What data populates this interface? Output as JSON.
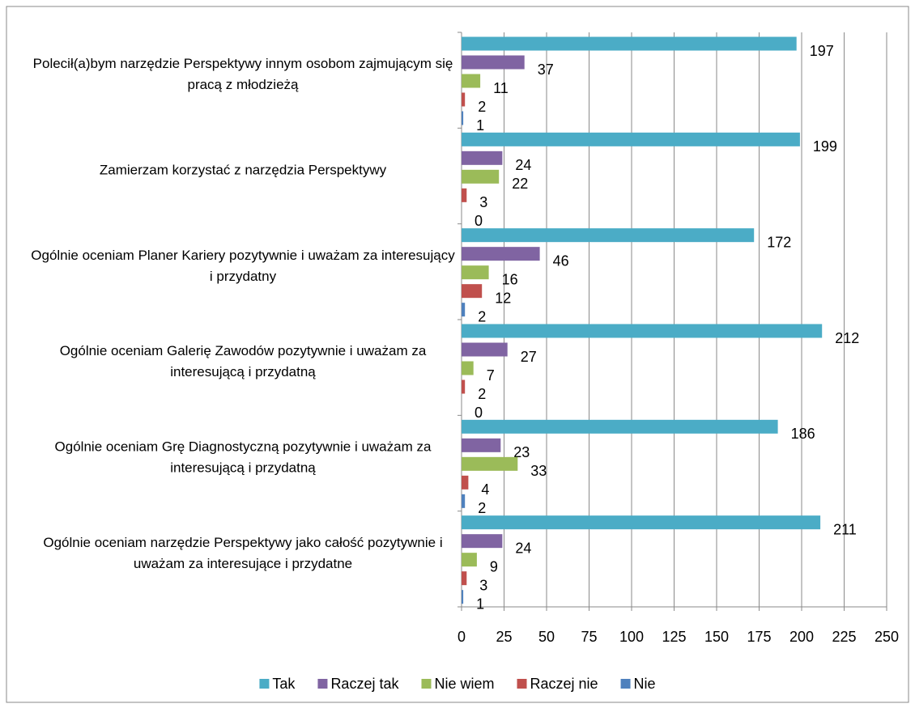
{
  "chart_data": {
    "type": "bar",
    "orientation": "horizontal",
    "categories": [
      "Polecił(a)bym narzędzie Perspektywy innym osobom zajmującym się pracą z młodzieżą",
      "Zamierzam korzystać z narzędzia Perspektywy",
      "Ogólnie oceniam Planer Kariery pozytywnie i uważam za interesujący i przydatny",
      "Ogólnie oceniam Galerię Zawodów pozytywnie i uważam za interesującą i przydatną",
      "Ogólnie oceniam Grę Diagnostyczną pozytywnie i uważam za interesującą i przydatną",
      "Ogólnie oceniam narzędzie Perspektywy jako całość pozytywnie i uważam za interesujące i przydatne"
    ],
    "series": [
      {
        "name": "Tak",
        "color": "#4bacc6",
        "values": [
          197,
          199,
          172,
          212,
          186,
          211
        ]
      },
      {
        "name": "Raczej tak",
        "color": "#8064a2",
        "values": [
          37,
          24,
          46,
          27,
          23,
          24
        ]
      },
      {
        "name": "Nie wiem",
        "color": "#9bbb59",
        "values": [
          11,
          22,
          16,
          7,
          33,
          9
        ]
      },
      {
        "name": "Raczej nie",
        "color": "#c0504d",
        "values": [
          2,
          3,
          12,
          2,
          4,
          3
        ]
      },
      {
        "name": "Nie",
        "color": "#4f81bd",
        "values": [
          1,
          0,
          2,
          0,
          2,
          1
        ]
      }
    ],
    "xlim": [
      0,
      250
    ],
    "xticks": [
      0,
      25,
      50,
      75,
      100,
      125,
      150,
      175,
      200,
      225,
      250
    ],
    "grid": true,
    "legend": "bottom"
  }
}
